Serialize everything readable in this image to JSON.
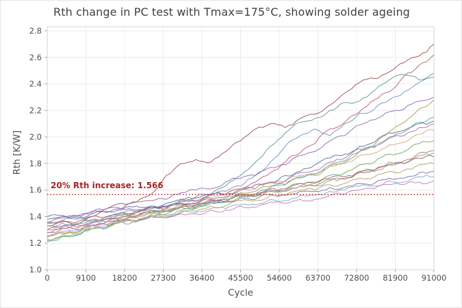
{
  "chart_data": {
    "type": "line",
    "title": "Rth change in PC test with Tmax=175°C, showing solder ageing",
    "xlabel": "Cycle",
    "ylabel": "Rth [K/W]",
    "xlim": [
      0,
      91000
    ],
    "ylim": [
      1.0,
      2.8
    ],
    "grid": true,
    "legend": "none",
    "x_ticks": [
      0,
      9100,
      18200,
      27300,
      36400,
      45500,
      54600,
      63700,
      72800,
      81900,
      91000
    ],
    "y_ticks": [
      1.0,
      1.2,
      1.4,
      1.6,
      1.8,
      2.0,
      2.2,
      2.4,
      2.6,
      2.8
    ],
    "threshold": {
      "value": 1.566,
      "label": "20% Rth increase: 1.566",
      "color": "#c01818",
      "style": "dotted"
    },
    "colors": {
      "grid": "#ececec",
      "plot_border": "#d4d4d4",
      "tick": "#a8a8a8",
      "tick_label": "#4a4d53"
    },
    "x": [
      0,
      3500,
      7000,
      10500,
      14000,
      17500,
      21000,
      24500,
      28000,
      31500,
      35000,
      38500,
      42000,
      45500,
      49000,
      52500,
      56000,
      59500,
      63000,
      66500,
      70000,
      73500,
      77000,
      80500,
      84000,
      87500,
      91000
    ],
    "series": [
      {
        "color": "#9c4444",
        "values": [
          1.33,
          1.36,
          1.34,
          1.4,
          1.46,
          1.5,
          1.51,
          1.57,
          1.71,
          1.8,
          1.83,
          1.81,
          1.89,
          1.97,
          2.06,
          2.1,
          2.07,
          2.14,
          2.17,
          2.24,
          2.33,
          2.41,
          2.44,
          2.49,
          2.56,
          2.61,
          2.7
        ]
      },
      {
        "color": "#b5566c",
        "values": [
          1.28,
          1.31,
          1.3,
          1.33,
          1.36,
          1.37,
          1.4,
          1.43,
          1.44,
          1.48,
          1.5,
          1.54,
          1.55,
          1.61,
          1.66,
          1.73,
          1.81,
          1.88,
          1.95,
          2.06,
          2.11,
          2.19,
          2.28,
          2.34,
          2.46,
          2.54,
          2.62
        ]
      },
      {
        "color": "#6b8cbe",
        "values": [
          1.35,
          1.37,
          1.38,
          1.36,
          1.4,
          1.43,
          1.44,
          1.47,
          1.48,
          1.51,
          1.52,
          1.56,
          1.59,
          1.63,
          1.71,
          1.81,
          1.93,
          2.01,
          2.06,
          2.01,
          2.1,
          2.18,
          2.21,
          2.28,
          2.34,
          2.41,
          2.45
        ]
      },
      {
        "color": "#4f9393",
        "values": [
          1.3,
          1.33,
          1.34,
          1.37,
          1.38,
          1.41,
          1.43,
          1.46,
          1.48,
          1.53,
          1.55,
          1.57,
          1.63,
          1.71,
          1.81,
          1.93,
          2.03,
          2.11,
          2.14,
          2.2,
          2.26,
          2.27,
          2.35,
          2.43,
          2.47,
          2.43,
          2.48
        ]
      },
      {
        "color": "#54679e",
        "values": [
          1.38,
          1.4,
          1.39,
          1.42,
          1.44,
          1.45,
          1.48,
          1.47,
          1.5,
          1.53,
          1.54,
          1.57,
          1.57,
          1.6,
          1.64,
          1.66,
          1.71,
          1.74,
          1.79,
          1.84,
          1.87,
          1.93,
          1.96,
          2.03,
          2.05,
          2.1,
          2.12
        ]
      },
      {
        "color": "#8a62b3",
        "values": [
          1.36,
          1.39,
          1.4,
          1.43,
          1.46,
          1.46,
          1.51,
          1.52,
          1.53,
          1.58,
          1.6,
          1.61,
          1.66,
          1.69,
          1.71,
          1.77,
          1.79,
          1.86,
          1.89,
          1.97,
          2.01,
          2.09,
          2.13,
          2.19,
          2.21,
          2.27,
          2.3
        ]
      },
      {
        "color": "#b363a8",
        "values": [
          1.28,
          1.31,
          1.34,
          1.35,
          1.39,
          1.39,
          1.44,
          1.47,
          1.47,
          1.52,
          1.52,
          1.57,
          1.57,
          1.61,
          1.61,
          1.66,
          1.67,
          1.73,
          1.75,
          1.81,
          1.84,
          1.91,
          1.93,
          1.99,
          2.01,
          2.07,
          2.1
        ]
      },
      {
        "color": "#9a9a46",
        "values": [
          1.25,
          1.28,
          1.28,
          1.33,
          1.34,
          1.38,
          1.39,
          1.43,
          1.44,
          1.48,
          1.49,
          1.53,
          1.54,
          1.58,
          1.59,
          1.63,
          1.64,
          1.69,
          1.71,
          1.78,
          1.81,
          1.89,
          1.94,
          2.04,
          2.11,
          2.21,
          2.28
        ]
      },
      {
        "color": "#cfa47c",
        "values": [
          1.24,
          1.27,
          1.28,
          1.33,
          1.34,
          1.39,
          1.4,
          1.45,
          1.46,
          1.51,
          1.51,
          1.56,
          1.56,
          1.61,
          1.61,
          1.65,
          1.66,
          1.71,
          1.72,
          1.78,
          1.8,
          1.86,
          1.88,
          1.94,
          1.96,
          2.02,
          2.05
        ]
      },
      {
        "color": "#6ba05f",
        "values": [
          1.22,
          1.25,
          1.26,
          1.31,
          1.32,
          1.37,
          1.37,
          1.42,
          1.42,
          1.47,
          1.47,
          1.51,
          1.51,
          1.55,
          1.55,
          1.59,
          1.6,
          1.65,
          1.66,
          1.71,
          1.73,
          1.79,
          1.81,
          1.87,
          1.89,
          1.95,
          1.97
        ]
      },
      {
        "color": "#a3795a",
        "values": [
          1.3,
          1.32,
          1.32,
          1.36,
          1.36,
          1.4,
          1.4,
          1.44,
          1.44,
          1.47,
          1.47,
          1.51,
          1.51,
          1.55,
          1.55,
          1.59,
          1.59,
          1.63,
          1.63,
          1.68,
          1.69,
          1.74,
          1.75,
          1.81,
          1.82,
          1.88,
          1.9
        ]
      },
      {
        "color": "#8396ab",
        "values": [
          1.33,
          1.35,
          1.35,
          1.38,
          1.38,
          1.42,
          1.41,
          1.45,
          1.45,
          1.49,
          1.48,
          1.52,
          1.52,
          1.56,
          1.56,
          1.6,
          1.59,
          1.63,
          1.63,
          1.67,
          1.68,
          1.73,
          1.74,
          1.79,
          1.8,
          1.86,
          1.88
        ]
      },
      {
        "color": "#7fa6cc",
        "values": [
          1.26,
          1.29,
          1.29,
          1.33,
          1.33,
          1.36,
          1.36,
          1.4,
          1.39,
          1.43,
          1.43,
          1.46,
          1.46,
          1.49,
          1.49,
          1.53,
          1.52,
          1.56,
          1.56,
          1.59,
          1.6,
          1.63,
          1.63,
          1.67,
          1.66,
          1.7,
          1.7
        ]
      },
      {
        "color": "#a65c52",
        "values": [
          1.35,
          1.37,
          1.36,
          1.4,
          1.4,
          1.43,
          1.43,
          1.47,
          1.46,
          1.5,
          1.5,
          1.53,
          1.53,
          1.57,
          1.57,
          1.61,
          1.61,
          1.65,
          1.65,
          1.69,
          1.7,
          1.74,
          1.75,
          1.79,
          1.8,
          1.84,
          1.85
        ]
      },
      {
        "color": "#7568a8",
        "values": [
          1.4,
          1.41,
          1.41,
          1.44,
          1.43,
          1.46,
          1.45,
          1.48,
          1.47,
          1.5,
          1.49,
          1.52,
          1.51,
          1.54,
          1.53,
          1.57,
          1.56,
          1.59,
          1.59,
          1.62,
          1.62,
          1.65,
          1.65,
          1.69,
          1.69,
          1.73,
          1.74
        ]
      },
      {
        "color": "#58a39b",
        "values": [
          1.21,
          1.25,
          1.26,
          1.31,
          1.31,
          1.36,
          1.36,
          1.41,
          1.41,
          1.45,
          1.46,
          1.5,
          1.51,
          1.56,
          1.57,
          1.62,
          1.64,
          1.7,
          1.72,
          1.79,
          1.82,
          1.89,
          1.92,
          2.0,
          2.04,
          2.11,
          2.15
        ]
      },
      {
        "color": "#b0a05a",
        "values": [
          1.23,
          1.26,
          1.27,
          1.31,
          1.32,
          1.36,
          1.36,
          1.4,
          1.4,
          1.44,
          1.44,
          1.48,
          1.48,
          1.52,
          1.52,
          1.56,
          1.56,
          1.6,
          1.6,
          1.64,
          1.65,
          1.69,
          1.7,
          1.74,
          1.75,
          1.79,
          1.8
        ]
      },
      {
        "color": "#c078ae",
        "values": [
          1.3,
          1.32,
          1.31,
          1.34,
          1.34,
          1.37,
          1.37,
          1.4,
          1.39,
          1.42,
          1.42,
          1.45,
          1.45,
          1.48,
          1.47,
          1.51,
          1.5,
          1.53,
          1.53,
          1.56,
          1.57,
          1.6,
          1.61,
          1.64,
          1.64,
          1.66,
          1.67
        ]
      }
    ]
  }
}
